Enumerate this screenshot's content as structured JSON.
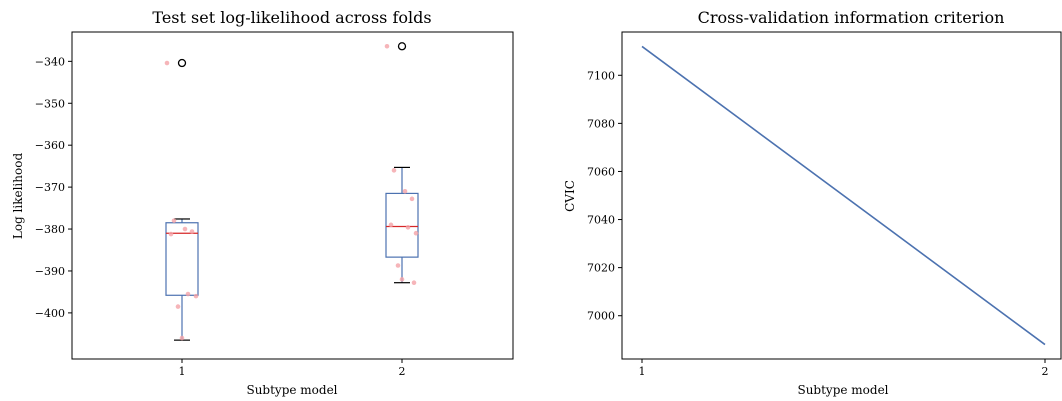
{
  "chart_data": [
    {
      "type": "box",
      "title": "Test set log-likelihood across folds",
      "xlabel": "Subtype  model",
      "ylabel": "Log likelihood",
      "categories": [
        "1",
        "2"
      ],
      "ylim": [
        -411,
        -333
      ],
      "yticks": [
        -340,
        -350,
        -360,
        -370,
        -380,
        -390,
        -400
      ],
      "ytick_labels": [
        "−340",
        "−350",
        "−360",
        "−370",
        "−380",
        "−390",
        "−400"
      ],
      "box_color": "#4c72b0",
      "median_color": "#d62728",
      "point_color": "#f4a3a8",
      "boxes": [
        {
          "category": "1",
          "whisker_low": -406.5,
          "q1": -395.8,
          "median": -381.0,
          "q3": -378.5,
          "whisker_high": -377.6,
          "outliers": [
            -340.4
          ]
        },
        {
          "category": "2",
          "whisker_low": -392.8,
          "q1": -386.7,
          "median": -379.4,
          "q3": -371.5,
          "whisker_high": -365.3,
          "outliers": [
            -336.4
          ]
        }
      ],
      "points": [
        {
          "category": "1",
          "values": [
            -340.4,
            -378.0,
            -380.0,
            -380.6,
            -381.2,
            -395.5,
            -396.0,
            -398.5,
            -406.0
          ]
        },
        {
          "category": "2",
          "values": [
            -336.4,
            -366.0,
            -371.0,
            -372.8,
            -379.0,
            -379.6,
            -381.0,
            -388.7,
            -392.0,
            -392.8
          ]
        }
      ]
    },
    {
      "type": "line",
      "title": "Cross-validation information criterion",
      "xlabel": "Subtype  model",
      "ylabel": "CVIC",
      "x": [
        1,
        2
      ],
      "y": [
        7112,
        6988
      ],
      "xticks": [
        "1",
        "2"
      ],
      "ylim": [
        6982,
        7118
      ],
      "yticks": [
        7000,
        7020,
        7040,
        7060,
        7080,
        7100
      ],
      "line_color": "#4c72b0"
    }
  ]
}
